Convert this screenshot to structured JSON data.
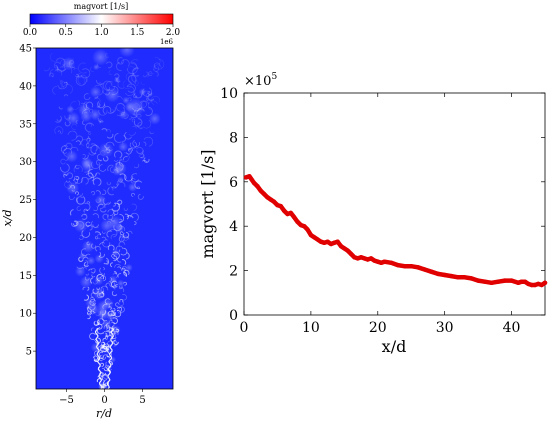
{
  "colorbar": {
    "title": "magvort [1/s]",
    "ticks": [
      "0.0",
      "0.5",
      "1.0",
      "1.5",
      "2.0"
    ],
    "tick_values": [
      0,
      0.5,
      1.0,
      1.5,
      2.0
    ],
    "range": [
      0,
      2.0
    ],
    "exponent_label": "1e6",
    "colors": [
      "#0000ff",
      "#ffffff",
      "#ff0000"
    ]
  },
  "field_plot": {
    "xlabel": "r/d",
    "ylabel": "x/d",
    "xlim": [
      -9,
      9
    ],
    "ylim": [
      0,
      45
    ],
    "xticks": [
      -5,
      0,
      5
    ],
    "xtick_labels": [
      "−5",
      "0",
      "5"
    ],
    "yticks": [
      5,
      10,
      15,
      20,
      25,
      30,
      35,
      40,
      45
    ],
    "background_color": "#1f2bff",
    "structure_color": "#ffffff"
  },
  "chart_data": {
    "type": "line",
    "xlabel": "x/d",
    "ylabel": "magvort [1/s]",
    "xlim": [
      0,
      45
    ],
    "ylim": [
      0,
      10
    ],
    "xticks": [
      0,
      10,
      20,
      30,
      40
    ],
    "yticks": [
      0,
      2,
      4,
      6,
      8,
      10
    ],
    "y_multiplier": "×10",
    "y_multiplier_exp": "5",
    "grid": false,
    "series": [
      {
        "color": "#e00000",
        "x": [
          0.3,
          0.8,
          1.5,
          2.0,
          2.5,
          3.0,
          3.5,
          4.0,
          4.5,
          5.0,
          5.5,
          6.0,
          6.5,
          7.0,
          7.5,
          8.0,
          8.5,
          9.0,
          9.5,
          10.0,
          10.5,
          11.0,
          11.5,
          12.0,
          12.5,
          13.0,
          13.5,
          14.0,
          14.5,
          15.0,
          15.5,
          16.0,
          16.5,
          17.0,
          17.5,
          18.0,
          18.5,
          19.0,
          19.5,
          20.0,
          20.5,
          21.0,
          22.0,
          23.0,
          24.0,
          25.0,
          26.0,
          27.0,
          28.0,
          29.0,
          30.0,
          31.0,
          32.0,
          33.0,
          34.0,
          35.0,
          36.0,
          37.0,
          38.0,
          39.0,
          40.0,
          41.0,
          41.5,
          42.0,
          42.5,
          43.0,
          43.5,
          44.0,
          44.5,
          45.0
        ],
        "y": [
          6.2,
          6.25,
          5.95,
          5.8,
          5.6,
          5.45,
          5.3,
          5.2,
          5.1,
          4.95,
          4.9,
          4.7,
          4.55,
          4.6,
          4.4,
          4.2,
          4.05,
          4.0,
          3.85,
          3.6,
          3.5,
          3.4,
          3.3,
          3.25,
          3.3,
          3.2,
          3.25,
          3.3,
          3.1,
          3.0,
          2.9,
          2.75,
          2.6,
          2.55,
          2.6,
          2.55,
          2.5,
          2.55,
          2.45,
          2.4,
          2.35,
          2.4,
          2.35,
          2.25,
          2.2,
          2.2,
          2.15,
          2.05,
          1.95,
          1.85,
          1.8,
          1.75,
          1.7,
          1.7,
          1.65,
          1.55,
          1.5,
          1.45,
          1.5,
          1.55,
          1.55,
          1.45,
          1.5,
          1.5,
          1.4,
          1.35,
          1.35,
          1.4,
          1.35,
          1.45
        ]
      }
    ]
  }
}
